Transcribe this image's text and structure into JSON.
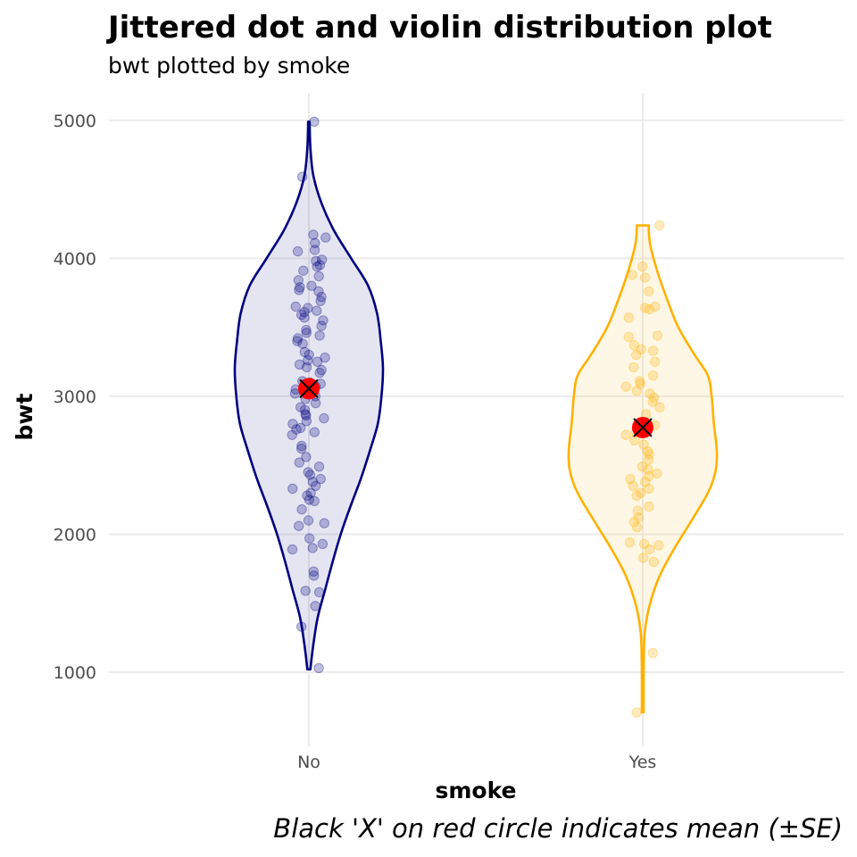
{
  "chart_data": {
    "type": "violin",
    "title": "Jittered dot and violin distribution plot",
    "subtitle": "bwt plotted by smoke",
    "xlabel": "smoke",
    "ylabel": "bwt",
    "caption": "Black 'X' on red circle indicates mean (±SE)",
    "categories": [
      "No",
      "Yes"
    ],
    "ylim": [
      500,
      5200
    ],
    "yticks": [
      1000,
      2000,
      3000,
      4000,
      5000
    ],
    "grid": true,
    "colors": {
      "No": "#000080",
      "Yes": "#FFB100",
      "mean": "#FF0000"
    },
    "groups": [
      {
        "name": "No",
        "mean": 3055,
        "se": 60,
        "range": [
          1021,
          4990
        ],
        "density": [
          [
            1021,
            0.02
          ],
          [
            1200,
            0.06
          ],
          [
            1400,
            0.12
          ],
          [
            1600,
            0.22
          ],
          [
            1800,
            0.32
          ],
          [
            2000,
            0.43
          ],
          [
            2200,
            0.56
          ],
          [
            2400,
            0.7
          ],
          [
            2600,
            0.82
          ],
          [
            2800,
            0.93
          ],
          [
            3000,
            0.98
          ],
          [
            3200,
            1.0
          ],
          [
            3400,
            0.97
          ],
          [
            3600,
            0.92
          ],
          [
            3800,
            0.8
          ],
          [
            4000,
            0.57
          ],
          [
            4200,
            0.34
          ],
          [
            4400,
            0.17
          ],
          [
            4600,
            0.06
          ],
          [
            4800,
            0.02
          ],
          [
            4990,
            0.01
          ]
        ],
        "points": [
          4990,
          4590,
          4170,
          4150,
          4110,
          4060,
          4050,
          3990,
          3980,
          3950,
          3940,
          3910,
          3870,
          3840,
          3800,
          3790,
          3770,
          3760,
          3720,
          3690,
          3650,
          3640,
          3620,
          3610,
          3590,
          3570,
          3550,
          3510,
          3480,
          3460,
          3440,
          3420,
          3400,
          3380,
          3320,
          3300,
          3280,
          3260,
          3250,
          3230,
          3210,
          3190,
          3170,
          3110,
          3100,
          3090,
          3070,
          3050,
          3040,
          3020,
          3000,
          2980,
          2950,
          2920,
          2900,
          2870,
          2860,
          2840,
          2820,
          2800,
          2770,
          2760,
          2740,
          2720,
          2640,
          2620,
          2560,
          2520,
          2490,
          2450,
          2430,
          2400,
          2380,
          2350,
          2330,
          2300,
          2280,
          2250,
          2240,
          2180,
          2100,
          2080,
          2060,
          1970,
          1930,
          1900,
          1890,
          1730,
          1700,
          1590,
          1580,
          1480,
          1330,
          1030
        ]
      },
      {
        "name": "Yes",
        "mean": 2773,
        "se": 70,
        "range": [
          709,
          4238
        ],
        "density": [
          [
            709,
            0.012
          ],
          [
            900,
            0.012
          ],
          [
            1100,
            0.014
          ],
          [
            1300,
            0.03
          ],
          [
            1500,
            0.1
          ],
          [
            1700,
            0.23
          ],
          [
            1900,
            0.43
          ],
          [
            2100,
            0.66
          ],
          [
            2300,
            0.88
          ],
          [
            2450,
            0.98
          ],
          [
            2600,
            1.0
          ],
          [
            2800,
            0.96
          ],
          [
            3000,
            0.93
          ],
          [
            3150,
            0.88
          ],
          [
            3300,
            0.7
          ],
          [
            3500,
            0.48
          ],
          [
            3700,
            0.33
          ],
          [
            3900,
            0.2
          ],
          [
            4100,
            0.1
          ],
          [
            4238,
            0.08
          ]
        ],
        "points": [
          4238,
          3940,
          3880,
          3860,
          3760,
          3650,
          3640,
          3630,
          3570,
          3440,
          3430,
          3370,
          3340,
          3330,
          3300,
          3250,
          3210,
          3150,
          3110,
          3090,
          3070,
          3040,
          3020,
          2990,
          2960,
          2920,
          2870,
          2790,
          2740,
          2720,
          2680,
          2650,
          2600,
          2580,
          2540,
          2490,
          2470,
          2440,
          2420,
          2400,
          2380,
          2350,
          2330,
          2300,
          2280,
          2200,
          2170,
          2120,
          2090,
          2050,
          1940,
          1930,
          1920,
          1890,
          1830,
          1800,
          1140,
          709
        ]
      }
    ]
  }
}
